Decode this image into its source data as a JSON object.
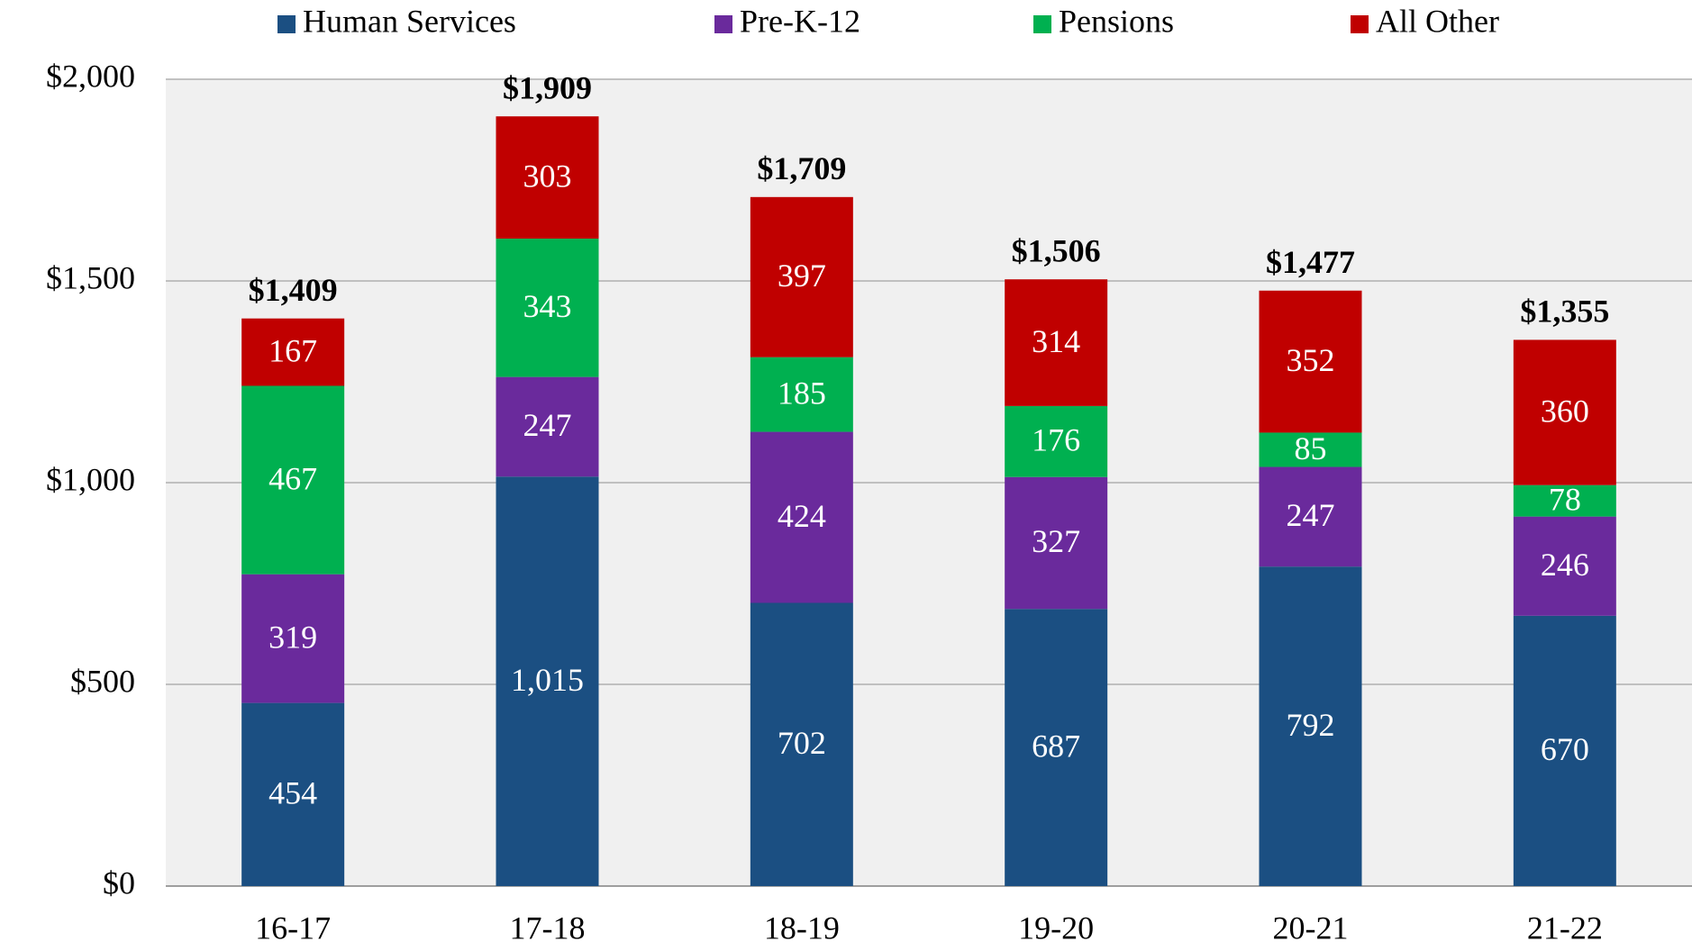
{
  "chart_data": {
    "type": "stacked-bar",
    "categories": [
      "16-17",
      "17-18",
      "18-19",
      "19-20",
      "20-21",
      "21-22"
    ],
    "series": [
      {
        "name": "Human Services",
        "color": "#1b4f82",
        "values": [
          454,
          1015,
          702,
          687,
          792,
          670
        ],
        "value_labels": [
          "454",
          "1,015",
          "702",
          "687",
          "792",
          "670"
        ]
      },
      {
        "name": "Pre-K-12",
        "color": "#6a2a9c",
        "values": [
          319,
          247,
          424,
          327,
          247,
          246
        ]
      },
      {
        "name": "Pensions",
        "color": "#00b050",
        "values": [
          467,
          343,
          185,
          176,
          85,
          78
        ]
      },
      {
        "name": "All Other",
        "color": "#c00000",
        "values": [
          167,
          303,
          397,
          314,
          352,
          360
        ]
      }
    ],
    "totals": {
      "values": [
        1409,
        1909,
        1709,
        1506,
        1477,
        1355
      ],
      "value_labels": [
        "$1,409",
        "$1,909",
        "$1,709",
        "$1,506",
        "$1,477",
        "$1,355"
      ]
    },
    "ylim": [
      0,
      2000
    ],
    "yticks": [
      {
        "value": 0,
        "label": "$0"
      },
      {
        "value": 500,
        "label": "$500"
      },
      {
        "value": 1000,
        "label": "$1,000"
      },
      {
        "value": 1500,
        "label": "$1,500"
      },
      {
        "value": 2000,
        "label": "$2,000"
      }
    ],
    "grid": true,
    "legend": "top"
  }
}
